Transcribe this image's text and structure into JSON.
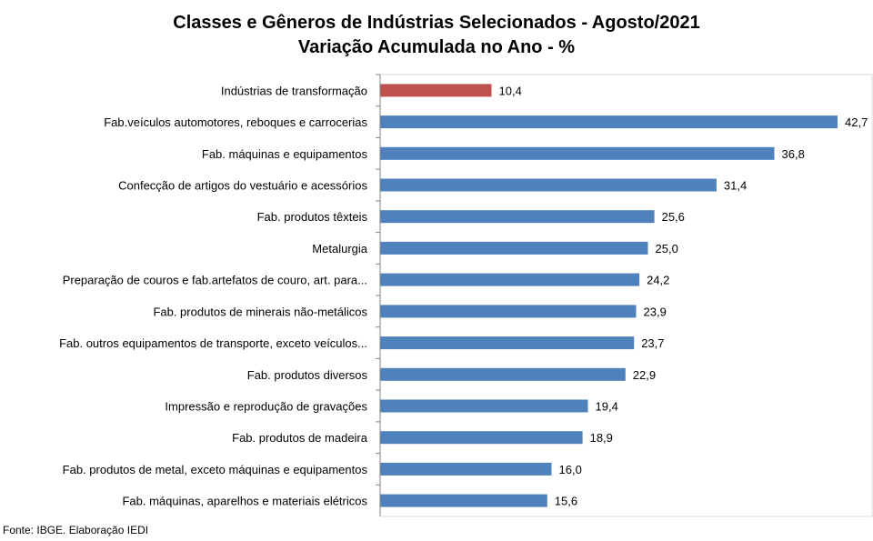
{
  "chart_data": {
    "type": "bar",
    "orientation": "horizontal",
    "title": "Classes e Gêneros de Indústrias Selecionados - Agosto/2021",
    "subtitle": "Variação Acumulada no Ano - %",
    "categories": [
      "Indústrias de transformação",
      "Fab.veículos automotores, reboques e carrocerias",
      "Fab. máquinas e equipamentos",
      "Confecção de artigos do vestuário e acessórios",
      "Fab. produtos têxteis",
      "Metalurgia",
      "Preparação de couros e fab.artefatos de couro, art. para...",
      "Fab. produtos de minerais não-metálicos",
      "Fab. outros equipamentos de transporte, exceto veículos...",
      "Fab. produtos diversos",
      "Impressão e reprodução de gravações",
      "Fab. produtos de madeira",
      "Fab. produtos de metal, exceto máquinas e equipamentos",
      "Fab. máquinas, aparelhos e materiais elétricos"
    ],
    "values": [
      10.4,
      42.7,
      36.8,
      31.4,
      25.6,
      25.0,
      24.2,
      23.9,
      23.7,
      22.9,
      19.4,
      18.9,
      16.0,
      15.6
    ],
    "value_labels": [
      "10,4",
      "42,7",
      "36,8",
      "31,4",
      "25,6",
      "25,0",
      "24,2",
      "23,9",
      "23,7",
      "22,9",
      "19,4",
      "18,9",
      "16,0",
      "15,6"
    ],
    "bar_colors": [
      "#C0504D",
      "#4F81BD",
      "#4F81BD",
      "#4F81BD",
      "#4F81BD",
      "#4F81BD",
      "#4F81BD",
      "#4F81BD",
      "#4F81BD",
      "#4F81BD",
      "#4F81BD",
      "#4F81BD",
      "#4F81BD",
      "#4F81BD"
    ],
    "xlim": [
      0,
      42.7
    ],
    "grid": false,
    "legend": "none"
  },
  "footer": {
    "source": "Fonte: IBGE. Elaboração IEDI"
  }
}
